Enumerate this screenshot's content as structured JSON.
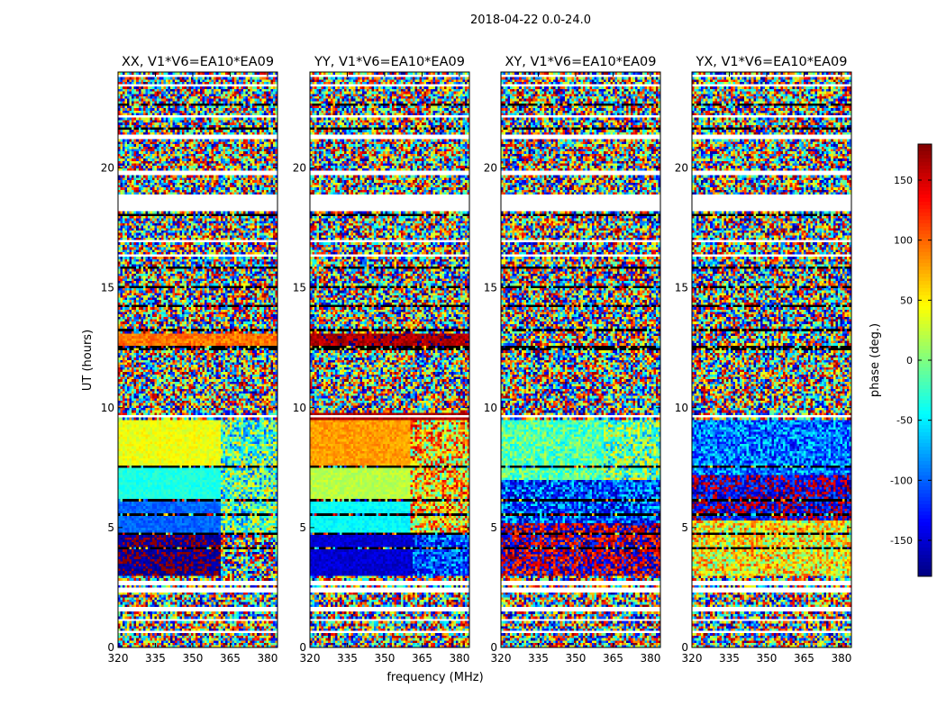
{
  "suptitle": "2018-04-22 0.0-24.0",
  "colors": {
    "colormap": "jet",
    "blank_row": "#ffffff",
    "flag_row": "#000000",
    "frame": "#000000"
  },
  "chart_data": {
    "type": "heatmap",
    "suptitle": "2018-04-22 0.0-24.0",
    "xlabel": "frequency (MHz)",
    "ylabel": "UT (hours)",
    "xlim": [
      320,
      384
    ],
    "ylim": [
      0,
      24
    ],
    "xticks": [
      320,
      335,
      350,
      365,
      380
    ],
    "yticks": [
      0,
      5,
      10,
      15,
      20
    ],
    "colorbar": {
      "label": "phase (deg.)",
      "range": [
        -180,
        180
      ],
      "ticks": [
        150,
        100,
        50,
        0,
        -50,
        -100,
        -150
      ],
      "colormap": "jet"
    },
    "panels": [
      {
        "title": "XX, V1*V6=EA10*EA09",
        "regions": [
          {
            "t0": 3.0,
            "t1": 4.8,
            "f0": 320,
            "f1": 361,
            "phase": 175,
            "mix": "half",
            "alt": -165
          },
          {
            "t0": 3.0,
            "t1": 4.8,
            "f0": 361,
            "f1": 384,
            "phase": 0,
            "jitter": 180
          },
          {
            "t0": 4.8,
            "t1": 6.2,
            "f0": 320,
            "f1": 361,
            "phase": -100,
            "jitter": 15
          },
          {
            "t0": 6.2,
            "t1": 7.6,
            "f0": 320,
            "f1": 361,
            "phase": -35,
            "jitter": 12
          },
          {
            "t0": 7.6,
            "t1": 9.5,
            "f0": 320,
            "f1": 361,
            "phase": 40,
            "jitter": 15
          },
          {
            "t0": 4.8,
            "t1": 9.5,
            "f0": 361,
            "f1": 384,
            "phase": -20,
            "jitter": 90
          },
          {
            "t0": 12.6,
            "t1": 13.1,
            "f0": 320,
            "f1": 384,
            "phase": 95,
            "jitter": 20
          }
        ]
      },
      {
        "title": "YY, V1*V6=EA10*EA09",
        "regions": [
          {
            "t0": 3.0,
            "t1": 4.8,
            "f0": 320,
            "f1": 361,
            "phase": -150,
            "jitter": 15
          },
          {
            "t0": 3.0,
            "t1": 4.8,
            "f0": 361,
            "f1": 384,
            "phase": -110,
            "jitter": 60
          },
          {
            "t0": 4.8,
            "t1": 6.2,
            "f0": 320,
            "f1": 360,
            "phase": -45,
            "jitter": 12
          },
          {
            "t0": 6.2,
            "t1": 7.6,
            "f0": 320,
            "f1": 360,
            "phase": 20,
            "jitter": 12
          },
          {
            "t0": 7.6,
            "t1": 9.5,
            "f0": 320,
            "f1": 360,
            "phase": 80,
            "jitter": 15
          },
          {
            "t0": 4.8,
            "t1": 9.5,
            "f0": 360,
            "f1": 384,
            "phase": 60,
            "jitter": 100
          },
          {
            "t0": 9.5,
            "t1": 9.8,
            "f0": 320,
            "f1": 384,
            "phase": 165,
            "jitter": 10
          },
          {
            "t0": 12.4,
            "t1": 13.1,
            "f0": 320,
            "f1": 384,
            "phase": 165,
            "jitter": 20
          }
        ]
      },
      {
        "title": "XY, V1*V6=EA10*EA09",
        "regions": [
          {
            "t0": 3.0,
            "t1": 5.2,
            "f0": 320,
            "f1": 384,
            "phase": 175,
            "jitter": 80
          },
          {
            "t0": 5.2,
            "t1": 7.0,
            "f0": 320,
            "f1": 384,
            "phase": -110,
            "jitter": 70
          },
          {
            "t0": 7.0,
            "t1": 9.5,
            "f0": 320,
            "f1": 361,
            "phase": -15,
            "jitter": 40
          },
          {
            "t0": 7.0,
            "t1": 9.5,
            "f0": 361,
            "f1": 384,
            "phase": -10,
            "jitter": 80
          }
        ]
      },
      {
        "title": "YX, V1*V6=EA10*EA09",
        "regions": [
          {
            "t0": 3.0,
            "t1": 5.3,
            "f0": 320,
            "f1": 384,
            "phase": 45,
            "jitter": 70
          },
          {
            "t0": 5.3,
            "t1": 7.2,
            "f0": 320,
            "f1": 384,
            "phase": -160,
            "jitter": 70
          },
          {
            "t0": 7.2,
            "t1": 9.5,
            "f0": 320,
            "f1": 384,
            "phase": -95,
            "jitter": 60
          }
        ]
      }
    ],
    "blank_rows": [
      [
        0.0,
        0.05
      ],
      [
        0.55,
        0.75
      ],
      [
        1.1,
        1.18
      ],
      [
        1.55,
        1.75
      ],
      [
        2.3,
        2.55
      ],
      [
        2.6,
        2.78
      ],
      [
        9.6,
        9.75
      ],
      [
        12.35,
        12.45
      ],
      [
        16.3,
        16.45
      ],
      [
        16.9,
        17.02
      ],
      [
        18.25,
        18.95
      ],
      [
        19.7,
        19.85
      ],
      [
        21.2,
        21.35
      ],
      [
        22.15,
        22.25
      ],
      [
        23.4,
        23.5
      ],
      [
        23.8,
        23.88
      ]
    ],
    "flag_rows": [
      [
        3.45,
        3.52
      ],
      [
        4.15,
        4.2
      ],
      [
        4.7,
        4.8
      ],
      [
        5.55,
        5.6
      ],
      [
        6.1,
        6.18
      ],
      [
        6.7,
        6.75
      ],
      [
        7.55,
        7.6
      ],
      [
        8.7,
        8.75
      ],
      [
        11.5,
        11.55
      ],
      [
        12.45,
        12.6
      ],
      [
        13.2,
        13.3
      ],
      [
        14.25,
        14.32
      ],
      [
        15.0,
        15.06
      ],
      [
        15.8,
        15.86
      ],
      [
        18.05,
        18.12
      ],
      [
        21.6,
        21.66
      ],
      [
        22.6,
        22.68
      ]
    ]
  }
}
